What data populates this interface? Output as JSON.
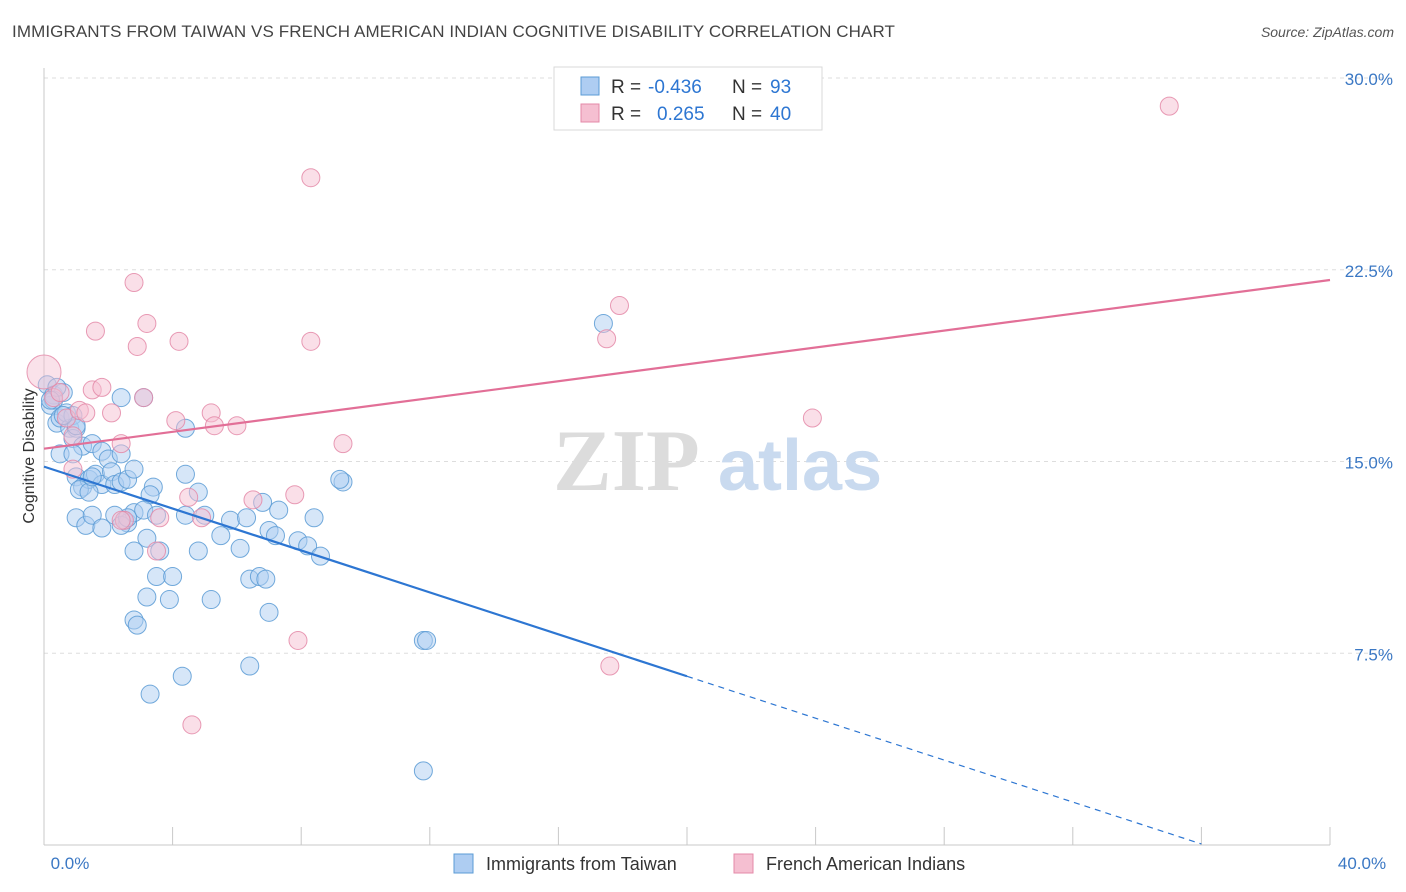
{
  "chart_data": {
    "type": "scatter",
    "title": "IMMIGRANTS FROM TAIWAN VS FRENCH AMERICAN INDIAN COGNITIVE DISABILITY CORRELATION CHART",
    "source": "Source: ZipAtlas.com",
    "xlabel": "",
    "ylabel": "Cognitive Disability",
    "xlim": [
      0,
      40
    ],
    "ylim": [
      0,
      30
    ],
    "x_tick_labels": [
      "0.0%",
      "40.0%"
    ],
    "y_tick_labels": [
      "7.5%",
      "15.0%",
      "22.5%",
      "30.0%"
    ],
    "y_ticks": [
      7.5,
      15,
      22.5,
      30
    ],
    "watermark": {
      "zip": "ZIP",
      "atlas": "atlas"
    },
    "legend_top": [
      {
        "r_label": "R =",
        "r_value": "-0.436",
        "n_label": "N =",
        "n_value": "93"
      },
      {
        "r_label": "R =",
        "r_value": "0.265",
        "n_label": "N =",
        "n_value": "40"
      }
    ],
    "series": [
      {
        "name": "Immigrants from Taiwan",
        "color": "#5b9bd5",
        "fill": "#aecdf2",
        "line_color": "#2d76d2",
        "trend": {
          "x0": 0,
          "y0": 14.8,
          "x1": 20,
          "y1": 6.6,
          "dash_to_x": 36
        },
        "points": [
          [
            0.1,
            18.0
          ],
          [
            0.2,
            17.2
          ],
          [
            0.3,
            17.6
          ],
          [
            0.4,
            16.5
          ],
          [
            0.5,
            16.7
          ],
          [
            0.6,
            17.7
          ],
          [
            0.7,
            16.9
          ],
          [
            0.8,
            16.3
          ],
          [
            0.9,
            16.8
          ],
          [
            1.0,
            16.3
          ],
          [
            0.5,
            15.3
          ],
          [
            0.9,
            15.9
          ],
          [
            1.2,
            15.6
          ],
          [
            1.5,
            15.7
          ],
          [
            1.8,
            15.4
          ],
          [
            2.0,
            15.1
          ],
          [
            0.9,
            15.3
          ],
          [
            1.0,
            14.4
          ],
          [
            1.2,
            14.0
          ],
          [
            1.4,
            14.3
          ],
          [
            1.6,
            14.5
          ],
          [
            1.8,
            14.1
          ],
          [
            2.1,
            14.6
          ],
          [
            2.2,
            14.1
          ],
          [
            2.4,
            14.2
          ],
          [
            2.6,
            14.3
          ],
          [
            2.8,
            14.7
          ],
          [
            1.1,
            13.9
          ],
          [
            1.4,
            13.8
          ],
          [
            3.4,
            14.0
          ],
          [
            3.3,
            13.7
          ],
          [
            4.4,
            14.5
          ],
          [
            4.8,
            13.8
          ],
          [
            1.0,
            12.8
          ],
          [
            1.3,
            12.5
          ],
          [
            1.5,
            12.9
          ],
          [
            1.8,
            12.4
          ],
          [
            2.2,
            12.9
          ],
          [
            2.5,
            12.7
          ],
          [
            2.6,
            12.6
          ],
          [
            2.8,
            13.0
          ],
          [
            3.1,
            13.1
          ],
          [
            3.5,
            12.9
          ],
          [
            4.4,
            12.9
          ],
          [
            5.0,
            12.9
          ],
          [
            5.8,
            12.7
          ],
          [
            6.3,
            12.8
          ],
          [
            6.8,
            13.4
          ],
          [
            7.3,
            13.1
          ],
          [
            8.4,
            12.8
          ],
          [
            2.4,
            12.5
          ],
          [
            2.6,
            12.8
          ],
          [
            7.0,
            12.3
          ],
          [
            7.2,
            12.1
          ],
          [
            7.9,
            11.9
          ],
          [
            8.2,
            11.7
          ],
          [
            8.6,
            11.3
          ],
          [
            3.2,
            12.0
          ],
          [
            5.5,
            12.1
          ],
          [
            2.8,
            11.5
          ],
          [
            3.6,
            11.5
          ],
          [
            4.8,
            11.5
          ],
          [
            6.1,
            11.6
          ],
          [
            3.5,
            10.5
          ],
          [
            4.0,
            10.5
          ],
          [
            6.4,
            10.4
          ],
          [
            6.7,
            10.5
          ],
          [
            6.9,
            10.4
          ],
          [
            3.2,
            9.7
          ],
          [
            3.9,
            9.6
          ],
          [
            5.2,
            9.6
          ],
          [
            7.0,
            9.1
          ],
          [
            2.8,
            8.8
          ],
          [
            2.9,
            8.6
          ],
          [
            11.8,
            8.0
          ],
          [
            11.9,
            8.0
          ],
          [
            6.4,
            7.0
          ],
          [
            4.3,
            6.6
          ],
          [
            3.3,
            5.9
          ],
          [
            11.8,
            2.9
          ],
          [
            17.4,
            20.4
          ],
          [
            9.3,
            14.2
          ],
          [
            9.2,
            14.3
          ],
          [
            1.0,
            16.4
          ],
          [
            0.3,
            17.4
          ],
          [
            1.5,
            14.4
          ],
          [
            2.4,
            15.3
          ],
          [
            3.1,
            17.5
          ],
          [
            2.4,
            17.5
          ],
          [
            4.4,
            16.3
          ],
          [
            0.4,
            17.9
          ],
          [
            0.6,
            16.8
          ],
          [
            0.2,
            17.4
          ]
        ]
      },
      {
        "name": "French American Indians",
        "color": "#e48aa8",
        "fill": "#f5bfd1",
        "line_color": "#e26f97",
        "trend": {
          "x0": 0,
          "y0": 15.5,
          "x1": 40,
          "y1": 22.1
        },
        "points": [
          [
            0.0,
            18.5
          ],
          [
            0.3,
            17.5
          ],
          [
            0.5,
            17.7
          ],
          [
            0.7,
            16.7
          ],
          [
            0.9,
            16.0
          ],
          [
            1.1,
            17.0
          ],
          [
            1.3,
            16.9
          ],
          [
            1.5,
            17.8
          ],
          [
            1.8,
            17.9
          ],
          [
            2.1,
            16.9
          ],
          [
            2.4,
            15.7
          ],
          [
            0.9,
            14.7
          ],
          [
            1.6,
            20.1
          ],
          [
            2.8,
            22.0
          ],
          [
            2.9,
            19.5
          ],
          [
            3.2,
            20.4
          ],
          [
            3.1,
            17.5
          ],
          [
            4.1,
            16.6
          ],
          [
            4.2,
            19.7
          ],
          [
            5.2,
            16.9
          ],
          [
            5.3,
            16.4
          ],
          [
            6.0,
            16.4
          ],
          [
            8.3,
            26.1
          ],
          [
            8.3,
            19.7
          ],
          [
            9.3,
            15.7
          ],
          [
            7.8,
            13.7
          ],
          [
            6.5,
            13.5
          ],
          [
            4.5,
            13.6
          ],
          [
            4.9,
            12.8
          ],
          [
            3.6,
            12.8
          ],
          [
            3.5,
            11.5
          ],
          [
            2.5,
            12.7
          ],
          [
            7.9,
            8.0
          ],
          [
            4.6,
            4.7
          ],
          [
            17.5,
            19.8
          ],
          [
            17.9,
            21.1
          ],
          [
            17.6,
            7.0
          ],
          [
            23.9,
            16.7
          ],
          [
            35.0,
            28.9
          ],
          [
            2.4,
            12.7
          ]
        ]
      }
    ]
  }
}
